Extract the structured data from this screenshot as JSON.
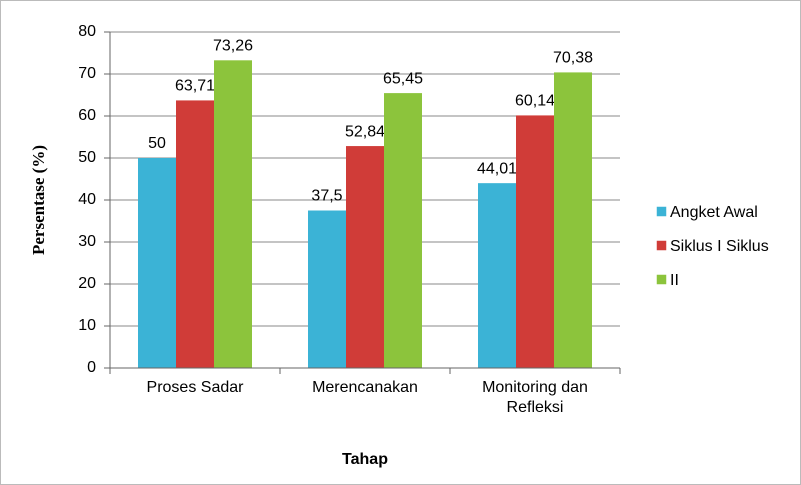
{
  "chart_data": {
    "type": "bar",
    "x_label": "Tahap",
    "y_label": "Persentase (%)",
    "categories": [
      "Proses Sadar",
      "Merencanakan",
      "Monitoring dan Refleksi"
    ],
    "series": [
      {
        "name": "Angket Awal",
        "color": "#3bb3d6",
        "values": [
          50,
          37.5,
          44.01
        ],
        "value_labels": [
          "50",
          "37,5",
          "44,01"
        ]
      },
      {
        "name": "Siklus I Siklus",
        "color": "#d03c38",
        "values": [
          63.71,
          52.84,
          60.14
        ],
        "value_labels": [
          "63,71",
          "52,84",
          "60,14"
        ]
      },
      {
        "name": "II",
        "color": "#8cc43c",
        "values": [
          73.26,
          65.45,
          70.38
        ],
        "value_labels": [
          "73,26",
          "65,45",
          "70,38"
        ]
      }
    ],
    "ylim": [
      0,
      80
    ],
    "yticks": [
      0,
      10,
      20,
      30,
      40,
      50,
      60,
      70,
      80
    ],
    "grid": true,
    "legend": "right"
  }
}
